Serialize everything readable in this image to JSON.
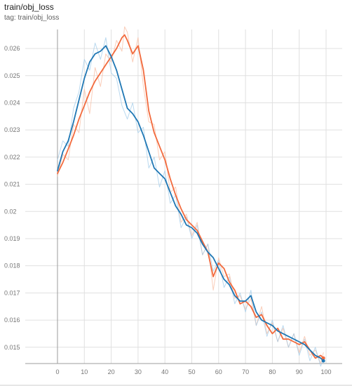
{
  "header": {
    "title": "train/obj_loss",
    "subtitle": "tag: train/obj_loss"
  },
  "colors": {
    "orange": "#f26a3d",
    "blue": "#1f77b4",
    "orange_raw": "#f8b99c",
    "blue_raw": "#9cc9e8",
    "grid": "#e0e0e0",
    "axis": "#9e9e9e"
  },
  "chart_data": {
    "type": "line",
    "title": "train/obj_loss",
    "xlabel": "",
    "ylabel": "",
    "xlim": [
      -12,
      106
    ],
    "ylim": [
      0.0144,
      0.0267
    ],
    "x_ticks": [
      0,
      10,
      20,
      30,
      40,
      50,
      60,
      70,
      80,
      90,
      100
    ],
    "y_ticks": [
      0.015,
      0.016,
      0.017,
      0.018,
      0.019,
      0.02,
      0.021,
      0.022,
      0.023,
      0.024,
      0.025,
      0.026
    ],
    "y_tick_labels": [
      "0.015",
      "0.016",
      "0.017",
      "0.018",
      "0.019",
      "0.02",
      "0.021",
      "0.022",
      "0.023",
      "0.024",
      "0.025",
      "0.026"
    ],
    "grid": true,
    "legend": "none",
    "series": [
      {
        "color": "#f26a3d",
        "x": [
          0,
          2,
          4,
          6,
          8,
          10,
          12,
          14,
          16,
          18,
          20,
          22,
          24,
          25,
          26,
          28,
          30,
          32,
          34,
          36,
          38,
          40,
          42,
          44,
          46,
          48,
          50,
          52,
          54,
          56,
          58,
          60,
          62,
          64,
          66,
          68,
          70,
          72,
          74,
          76,
          78,
          80,
          82,
          84,
          86,
          88,
          90,
          92,
          94,
          96,
          98,
          99
        ],
        "values": [
          0.0214,
          0.0218,
          0.0223,
          0.0228,
          0.0234,
          0.0239,
          0.0244,
          0.0248,
          0.0251,
          0.0254,
          0.0257,
          0.026,
          0.0264,
          0.0265,
          0.0263,
          0.0258,
          0.0261,
          0.0252,
          0.0237,
          0.0229,
          0.0224,
          0.0219,
          0.0212,
          0.0206,
          0.0201,
          0.0197,
          0.0195,
          0.0193,
          0.0189,
          0.0185,
          0.0176,
          0.0181,
          0.0179,
          0.0174,
          0.0171,
          0.0166,
          0.0167,
          0.0165,
          0.0161,
          0.0162,
          0.0158,
          0.0155,
          0.0157,
          0.0153,
          0.0153,
          0.0152,
          0.0151,
          0.0152,
          0.0149,
          0.0146,
          0.0147,
          0.0146
        ]
      },
      {
        "color": "#1f77b4",
        "x": [
          0,
          2,
          4,
          6,
          8,
          10,
          12,
          14,
          16,
          18,
          20,
          22,
          24,
          26,
          28,
          30,
          32,
          34,
          36,
          38,
          40,
          42,
          44,
          46,
          48,
          50,
          52,
          54,
          56,
          58,
          60,
          62,
          64,
          66,
          68,
          70,
          72,
          74,
          76,
          78,
          80,
          82,
          84,
          86,
          88,
          90,
          92,
          94,
          96,
          98,
          99
        ],
        "values": [
          0.0215,
          0.0222,
          0.0226,
          0.0233,
          0.0241,
          0.0249,
          0.0255,
          0.0258,
          0.0259,
          0.0261,
          0.0257,
          0.0252,
          0.0245,
          0.0238,
          0.0236,
          0.0233,
          0.0228,
          0.0222,
          0.0216,
          0.0214,
          0.0212,
          0.0207,
          0.0202,
          0.0199,
          0.0195,
          0.0194,
          0.0192,
          0.0188,
          0.0185,
          0.0183,
          0.0179,
          0.0175,
          0.0173,
          0.0169,
          0.0167,
          0.0167,
          0.0169,
          0.0163,
          0.016,
          0.0159,
          0.0158,
          0.0156,
          0.0155,
          0.0154,
          0.0153,
          0.0152,
          0.0151,
          0.0149,
          0.0147,
          0.0146,
          0.0145
        ]
      },
      {
        "color": "#f8b99c",
        "x": [
          0,
          2,
          4,
          6,
          8,
          10,
          12,
          14,
          16,
          18,
          20,
          22,
          24,
          25,
          26,
          28,
          30,
          32,
          34,
          36,
          38,
          40,
          42,
          44,
          46,
          48,
          50,
          52,
          54,
          56,
          58,
          60,
          62,
          64,
          66,
          68,
          70,
          72,
          74,
          76,
          78,
          80,
          82,
          84,
          86,
          88,
          90,
          92,
          94,
          96,
          98,
          99
        ],
        "values": [
          0.0213,
          0.0221,
          0.0219,
          0.0232,
          0.0229,
          0.0245,
          0.0236,
          0.0253,
          0.0246,
          0.0258,
          0.0255,
          0.0263,
          0.0259,
          0.0268,
          0.0266,
          0.0255,
          0.0264,
          0.0246,
          0.0233,
          0.0232,
          0.0219,
          0.0222,
          0.0207,
          0.0209,
          0.0196,
          0.0199,
          0.0191,
          0.0196,
          0.0184,
          0.0188,
          0.0171,
          0.0183,
          0.0176,
          0.0177,
          0.0168,
          0.0169,
          0.0164,
          0.0168,
          0.0158,
          0.0165,
          0.0155,
          0.0159,
          0.0152,
          0.0157,
          0.015,
          0.0155,
          0.0148,
          0.0154,
          0.0147,
          0.0149,
          0.0144,
          0.0148
        ]
      },
      {
        "color": "#9cc9e8",
        "x": [
          0,
          2,
          4,
          6,
          8,
          10,
          12,
          14,
          16,
          18,
          20,
          22,
          24,
          26,
          28,
          30,
          32,
          34,
          36,
          38,
          40,
          42,
          44,
          46,
          48,
          50,
          52,
          54,
          56,
          58,
          60,
          62,
          64,
          66,
          68,
          70,
          72,
          74,
          76,
          78,
          80,
          82,
          84,
          86,
          88,
          90,
          92,
          94,
          96,
          98,
          99
        ],
        "values": [
          0.0219,
          0.0226,
          0.0224,
          0.0238,
          0.0244,
          0.0256,
          0.0252,
          0.0262,
          0.0256,
          0.0264,
          0.0251,
          0.0249,
          0.0239,
          0.0234,
          0.024,
          0.0229,
          0.0231,
          0.0216,
          0.022,
          0.0209,
          0.0215,
          0.0203,
          0.0206,
          0.0194,
          0.0198,
          0.019,
          0.0195,
          0.0184,
          0.0188,
          0.0178,
          0.0182,
          0.0172,
          0.0176,
          0.0166,
          0.017,
          0.0163,
          0.0171,
          0.0158,
          0.0163,
          0.0154,
          0.016,
          0.0152,
          0.0158,
          0.015,
          0.0155,
          0.0147,
          0.0153,
          0.0145,
          0.015,
          0.0143,
          0.0146
        ]
      }
    ]
  }
}
